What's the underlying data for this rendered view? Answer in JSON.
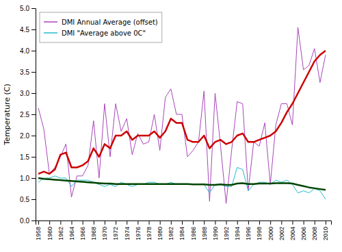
{
  "chart_data": {
    "type": "line",
    "ylabel": "Temperature (C)",
    "x": [
      1958,
      1959,
      1960,
      1961,
      1962,
      1963,
      1964,
      1965,
      1966,
      1967,
      1968,
      1969,
      1970,
      1971,
      1972,
      1973,
      1974,
      1975,
      1976,
      1977,
      1978,
      1979,
      1980,
      1981,
      1982,
      1983,
      1984,
      1985,
      1986,
      1987,
      1988,
      1989,
      1990,
      1991,
      1992,
      1993,
      1994,
      1995,
      1996,
      1997,
      1998,
      1999,
      2000,
      2001,
      2002,
      2003,
      2004,
      2005,
      2006,
      2007,
      2008,
      2009,
      2010
    ],
    "xlim": [
      1957.5,
      2011
    ],
    "xticks": [
      1958,
      1960,
      1962,
      1964,
      1966,
      1968,
      1970,
      1972,
      1974,
      1976,
      1978,
      1980,
      1982,
      1984,
      1986,
      1988,
      1990,
      1992,
      1994,
      1996,
      1998,
      2000,
      2002,
      2004,
      2006,
      2008,
      2010
    ],
    "ylim": [
      0,
      5
    ],
    "yticks": [
      {
        "value": 0,
        "label": "0.0"
      },
      0.5,
      {
        "value": 1.0,
        "label": "1.0"
      },
      1.5,
      {
        "value": 2.0,
        "label": "2.0"
      },
      2.5,
      {
        "value": 3.0,
        "label": "3.0"
      },
      3.5,
      {
        "value": 4.0,
        "label": "4.0"
      },
      4.5,
      {
        "value": 5.0,
        "label": "5.0"
      }
    ],
    "legend": "upper left",
    "series": [
      {
        "name": "DMI Annual Average (offset)",
        "color": "#aa44bb",
        "values": [
          2.65,
          2.15,
          1.1,
          1.25,
          1.5,
          1.8,
          0.55,
          1.05,
          1.05,
          1.3,
          2.35,
          1.0,
          2.75,
          1.5,
          2.75,
          2.1,
          2.4,
          1.55,
          2.05,
          1.8,
          1.85,
          2.5,
          1.65,
          2.9,
          3.1,
          2.5,
          2.5,
          1.5,
          1.65,
          1.85,
          3.05,
          0.45,
          3.0,
          1.75,
          0.4,
          1.65,
          2.8,
          2.75,
          0.7,
          1.85,
          1.75,
          2.3,
          0.85,
          2.25,
          2.75,
          2.75,
          2.25,
          4.55,
          3.55,
          3.65,
          4.05,
          3.25,
          3.9
        ]
      },
      {
        "color": "#cc0000",
        "values": [
          1.1,
          1.15,
          1.1,
          1.2,
          1.55,
          1.6,
          1.25,
          1.25,
          1.3,
          1.4,
          1.7,
          1.5,
          1.8,
          1.7,
          2.0,
          2.0,
          2.1,
          1.9,
          2.0,
          2.0,
          2.0,
          2.1,
          1.95,
          2.1,
          2.4,
          2.3,
          2.3,
          1.9,
          1.85,
          1.85,
          2.0,
          1.7,
          1.85,
          1.9,
          1.8,
          1.85,
          2.0,
          2.05,
          1.85,
          1.85,
          1.9,
          1.95,
          2.0,
          2.1,
          2.3,
          2.55,
          2.75,
          3.0,
          3.25,
          3.5,
          3.75,
          3.9,
          4.0
        ]
      },
      {
        "name": "DMI \"Average above 0C\"",
        "color": "#22bbcc",
        "values": [
          0.9,
          1.0,
          1.0,
          1.05,
          1.0,
          1.0,
          0.8,
          0.95,
          0.95,
          0.95,
          0.9,
          0.85,
          0.8,
          0.85,
          0.8,
          0.9,
          0.85,
          0.8,
          0.85,
          0.85,
          0.9,
          0.9,
          0.85,
          0.85,
          0.9,
          0.85,
          0.85,
          0.85,
          0.85,
          0.85,
          0.85,
          0.65,
          0.85,
          0.85,
          0.8,
          0.8,
          1.25,
          1.2,
          0.7,
          0.85,
          0.9,
          0.9,
          0.85,
          0.95,
          0.9,
          0.95,
          0.85,
          0.65,
          0.7,
          0.65,
          0.75,
          0.7,
          0.5
        ]
      },
      {
        "color": "#004400",
        "values": [
          1.0,
          0.98,
          0.97,
          0.96,
          0.95,
          0.94,
          0.93,
          0.92,
          0.91,
          0.9,
          0.89,
          0.88,
          0.87,
          0.87,
          0.86,
          0.86,
          0.86,
          0.86,
          0.86,
          0.86,
          0.86,
          0.86,
          0.86,
          0.86,
          0.86,
          0.86,
          0.86,
          0.86,
          0.85,
          0.85,
          0.85,
          0.84,
          0.84,
          0.85,
          0.84,
          0.84,
          0.87,
          0.88,
          0.86,
          0.86,
          0.87,
          0.87,
          0.87,
          0.88,
          0.88,
          0.88,
          0.87,
          0.84,
          0.81,
          0.78,
          0.76,
          0.74,
          0.72
        ]
      }
    ]
  }
}
